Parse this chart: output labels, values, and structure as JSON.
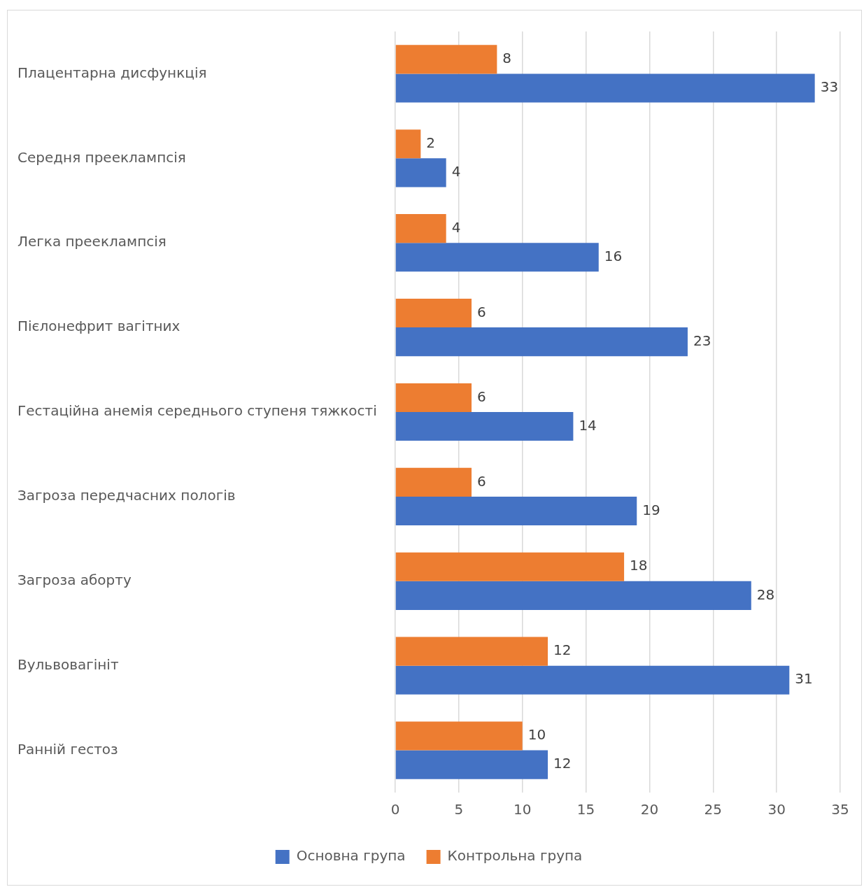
{
  "chart_data": {
    "type": "bar",
    "orientation": "horizontal",
    "categories": [
      "Плацентарна дисфункція",
      "Середня прееклампсія",
      "Легка прееклампсія",
      "Пієлонефрит вагітних",
      "Гестаційна анемія середнього ступеня тяжкості",
      "Загроза передчасних пологів",
      "Загроза аборту",
      "Вульвовагініт",
      "Ранній гестоз"
    ],
    "series": [
      {
        "name": "Основна група",
        "color": "#4472c4",
        "values": [
          33,
          4,
          16,
          23,
          14,
          19,
          28,
          31,
          12
        ]
      },
      {
        "name": "Контрольна група",
        "color": "#ed7d31",
        "values": [
          8,
          2,
          4,
          6,
          6,
          6,
          18,
          12,
          10
        ]
      }
    ],
    "xlim": [
      0,
      35
    ],
    "xticks": [
      0,
      5,
      10,
      15,
      20,
      25,
      30,
      35
    ],
    "grid": "x",
    "legend": "bottom",
    "data_labels": true
  }
}
